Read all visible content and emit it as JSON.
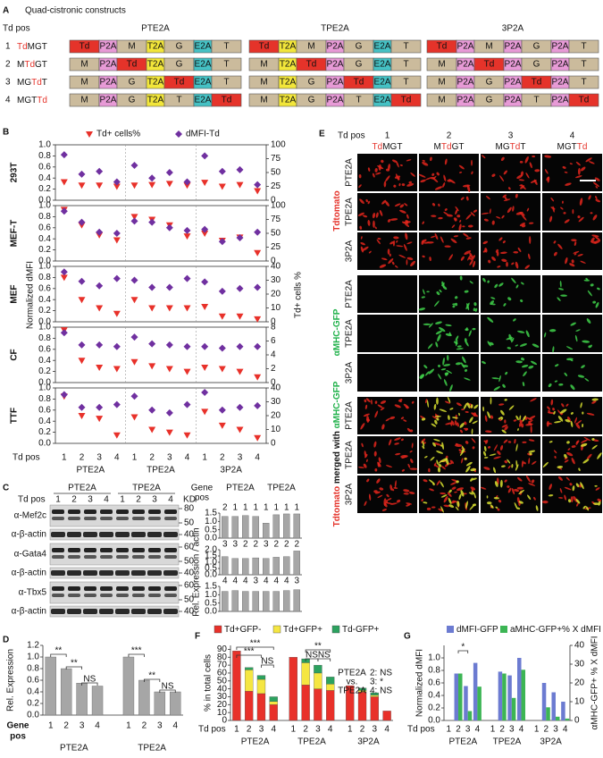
{
  "panel_labels": {
    "a": "A",
    "b": "B",
    "c": "C",
    "d": "D",
    "e": "E",
    "f": "F",
    "g": "G"
  },
  "panel_a": {
    "title": "Quad-cistronic constructs",
    "td_pos": "Td pos",
    "groups": [
      "PTE2A",
      "TPE2A",
      "3P2A"
    ],
    "rows": [
      {
        "number": "1",
        "label": [
          {
            "text": "Td",
            "color": "#e5332a"
          },
          {
            "text": "MGT"
          }
        ]
      },
      {
        "number": "2",
        "label": [
          {
            "text": "M"
          },
          {
            "text": "Td",
            "color": "#e5332a"
          },
          {
            "text": "GT"
          }
        ]
      },
      {
        "number": "3",
        "label": [
          {
            "text": "MG"
          },
          {
            "text": "Td",
            "color": "#e5332a"
          },
          {
            "text": "T"
          }
        ]
      },
      {
        "number": "4",
        "label": [
          {
            "text": "MGT"
          },
          {
            "text": "Td",
            "color": "#e5332a"
          }
        ]
      }
    ],
    "segment_colors": {
      "Td": "#e5332a",
      "P2A": "#e79ad6",
      "T2A": "#f2e63a",
      "E2A": "#45c1c4",
      "M": "#cbbb9c",
      "G": "#cbbb9c",
      "T": "#cbbb9c"
    },
    "constructs": [
      [
        [
          "Td",
          "P2A",
          "M",
          "T2A",
          "G",
          "E2A",
          "T"
        ],
        [
          "M",
          "P2A",
          "Td",
          "T2A",
          "G",
          "E2A",
          "T"
        ],
        [
          "M",
          "P2A",
          "G",
          "T2A",
          "Td",
          "E2A",
          "T"
        ],
        [
          "M",
          "P2A",
          "G",
          "T2A",
          "T",
          "E2A",
          "Td"
        ]
      ],
      [
        [
          "Td",
          "T2A",
          "M",
          "P2A",
          "G",
          "E2A",
          "T"
        ],
        [
          "M",
          "T2A",
          "Td",
          "P2A",
          "G",
          "E2A",
          "T"
        ],
        [
          "M",
          "T2A",
          "G",
          "P2A",
          "Td",
          "E2A",
          "T"
        ],
        [
          "M",
          "T2A",
          "G",
          "P2A",
          "T",
          "E2A",
          "Td"
        ]
      ],
      [
        [
          "Td",
          "P2A",
          "M",
          "P2A",
          "G",
          "P2A",
          "T"
        ],
        [
          "M",
          "P2A",
          "Td",
          "P2A",
          "G",
          "P2A",
          "T"
        ],
        [
          "M",
          "P2A",
          "G",
          "P2A",
          "Td",
          "P2A",
          "T"
        ],
        [
          "M",
          "P2A",
          "G",
          "P2A",
          "T",
          "P2A",
          "Td"
        ]
      ]
    ]
  },
  "panel_c_blot": {
    "td_pos": "Td pos",
    "groups": [
      "PTE2A",
      "TPE2A"
    ],
    "lanes": [
      "1",
      "2",
      "3",
      "4",
      "1",
      "2",
      "3",
      "4"
    ],
    "kd": "KD",
    "blots": [
      {
        "label": "α-Mef2c",
        "markers": [
          "80",
          "50"
        ]
      },
      {
        "label": "α-β-actin",
        "markers": [
          "40"
        ]
      },
      {
        "label": "α-Gata4",
        "markers": [
          "60",
          "50"
        ]
      },
      {
        "label": "α-β-actin",
        "markers": [
          "40"
        ]
      },
      {
        "label": "α-Tbx5",
        "markers": [
          "60",
          "50"
        ]
      },
      {
        "label": "α-β-actin",
        "markers": [
          "40"
        ]
      }
    ]
  },
  "panel_e": {
    "td_pos": "Td pos",
    "columns": [
      {
        "number": "1",
        "label": [
          {
            "text": "Td",
            "color": "#e5332a"
          },
          {
            "text": "MGT"
          }
        ]
      },
      {
        "number": "2",
        "label": [
          {
            "text": "M"
          },
          {
            "text": "Td",
            "color": "#e5332a"
          },
          {
            "text": "GT"
          }
        ]
      },
      {
        "number": "3",
        "label": [
          {
            "text": "MG"
          },
          {
            "text": "Td",
            "color": "#e5332a"
          },
          {
            "text": "T"
          }
        ]
      },
      {
        "number": "4",
        "label": [
          {
            "text": "MGT"
          },
          {
            "text": "Td",
            "color": "#e5332a"
          }
        ]
      }
    ],
    "blocks": [
      {
        "title": [
          {
            "text": "Tdtomato",
            "color": "#e5332a"
          }
        ],
        "rows": [
          "PTE2A",
          "TPE2A",
          "3P2A"
        ],
        "channels": [
          "#e0261c"
        ]
      },
      {
        "title": [
          {
            "text": "αMHC-GFP",
            "color": "#22b24c"
          }
        ],
        "rows": [
          "PTE2A",
          "TPE2A",
          "3P2A"
        ],
        "channels": [
          "#3fd04a"
        ]
      },
      {
        "title": [
          {
            "text": "Tdtomato",
            "color": "#e5332a"
          },
          {
            "text": " merged with "
          },
          {
            "text": "αMHC-GFP",
            "color": "#22b24c"
          }
        ],
        "rows": [
          "PTE2A",
          "TPE2A",
          "3P2A"
        ],
        "channels": [
          "#e0261c",
          "#d8e030"
        ]
      }
    ]
  },
  "chart_data": [
    {
      "type": "dot",
      "x_label": "Td pos",
      "categories": [
        "1",
        "2",
        "3",
        "4",
        "1",
        "2",
        "3",
        "4",
        "1",
        "2",
        "3",
        "4"
      ],
      "groups": [
        "PTE2A",
        "TPE2A",
        "3P2A"
      ],
      "legend": [
        {
          "name": "Td+ cells%",
          "color": "#e8312a"
        },
        {
          "name": "dMFI-Td",
          "color": "#7030a0"
        }
      ],
      "ylabel": "Normalized dMFI",
      "y2label": "Td+ cells %",
      "ylim": [
        0,
        1
      ],
      "yticks": [
        {
          "value": 0,
          "label": "0.0"
        },
        0.2,
        0.4,
        0.6,
        0.8,
        {
          "value": 1,
          "label": "1.0"
        }
      ],
      "panels": [
        {
          "name": "293T",
          "y2lim": [
            0,
            100
          ],
          "y2ticks": [
            0,
            25,
            50,
            75,
            100
          ],
          "series": [
            {
              "axis": "y2",
              "values": [
                33,
                27,
                27,
                25,
                27,
                28,
                30,
                27,
                32,
                25,
                28,
                17
              ]
            },
            {
              "axis": "y",
              "values": [
                0.82,
                0.47,
                0.52,
                0.33,
                0.63,
                0.4,
                0.5,
                0.33,
                0.8,
                0.52,
                0.55,
                0.28
              ]
            }
          ]
        },
        {
          "name": "MEF-T",
          "y2lim": [
            0,
            100
          ],
          "y2ticks": [
            0,
            25,
            50,
            75,
            100
          ],
          "series": [
            {
              "axis": "y2",
              "values": [
                93,
                65,
                47,
                38,
                80,
                75,
                65,
                45,
                50,
                37,
                43,
                15
              ]
            },
            {
              "axis": "y",
              "values": [
                0.9,
                0.7,
                0.52,
                0.5,
                0.72,
                0.7,
                0.6,
                0.55,
                0.57,
                0.35,
                0.42,
                0.52
              ]
            }
          ]
        },
        {
          "name": "MEF",
          "y2lim": [
            0,
            40
          ],
          "y2ticks": [
            0,
            10,
            20,
            30,
            40
          ],
          "series": [
            {
              "axis": "y2",
              "values": [
                32,
                16,
                10,
                6,
                16,
                10,
                10,
                10,
                11,
                4,
                4,
                2
              ]
            },
            {
              "axis": "y",
              "values": [
                0.9,
                0.73,
                0.65,
                0.78,
                0.75,
                0.62,
                0.62,
                0.78,
                0.72,
                0.55,
                0.6,
                0.62
              ]
            }
          ]
        },
        {
          "name": "CF",
          "y2lim": [
            0,
            8
          ],
          "y2ticks": [
            0,
            2,
            4,
            6,
            8
          ],
          "series": [
            {
              "axis": "y2",
              "values": [
                7.6,
                3.2,
                2.2,
                2,
                3,
                2.4,
                2,
                1.6,
                2.2,
                2,
                1.6,
                0.8
              ]
            },
            {
              "axis": "y",
              "values": [
                0.9,
                0.68,
                0.68,
                0.65,
                0.82,
                0.7,
                0.68,
                0.65,
                0.65,
                0.62,
                0.65,
                0.65
              ]
            }
          ]
        },
        {
          "name": "TTF",
          "y2lim": [
            0,
            40
          ],
          "y2ticks": [
            0,
            10,
            20,
            30,
            40
          ],
          "series": [
            {
              "axis": "y2",
              "values": [
                34,
                20,
                18,
                6,
                19,
                10,
                8,
                6,
                23,
                13,
                10,
                4
              ]
            },
            {
              "axis": "y",
              "values": [
                0.88,
                0.65,
                0.65,
                0.7,
                0.85,
                0.6,
                0.55,
                0.7,
                0.92,
                0.6,
                0.65,
                0.68
              ]
            }
          ]
        }
      ]
    },
    {
      "type": "bar",
      "category_label": [
        "Gene",
        "pos"
      ],
      "groups": [
        "PTE2A",
        "TPE2A"
      ],
      "categories": [
        "2",
        "1",
        "1",
        "1",
        "1",
        "1",
        "1",
        "1"
      ],
      "values": [
        1.3,
        1.3,
        1.35,
        1.3,
        0.9,
        1.4,
        1.45,
        1.45
      ],
      "color": "#a6a6a6",
      "ylim": [
        0,
        1.5
      ],
      "yticks": [
        {
          "value": 0,
          "label": "0.0"
        },
        0.5,
        {
          "value": 1,
          "label": "1.0"
        },
        1.5
      ]
    },
    {
      "type": "bar",
      "ylabel": "Rel. Expression / actin",
      "categories": [
        "3",
        "3",
        "2",
        "2",
        "3",
        "2",
        "2",
        "2"
      ],
      "values": [
        1.45,
        1.3,
        1.3,
        1.35,
        1.3,
        1.4,
        1.45,
        1.9
      ],
      "color": "#a6a6a6",
      "ylim": [
        0,
        2
      ],
      "yticks": [
        {
          "value": 0,
          "label": "0.0"
        },
        0.5,
        {
          "value": 1,
          "label": "1.0"
        },
        1.5,
        {
          "value": 2,
          "label": "2.0"
        }
      ]
    },
    {
      "type": "bar",
      "categories": [
        "4",
        "4",
        "4",
        "3",
        "4",
        "4",
        "4",
        "3"
      ],
      "values": [
        1.2,
        1.25,
        1.2,
        1.2,
        1.2,
        1.2,
        1.25,
        1.3
      ],
      "color": "#a6a6a6",
      "ylim": [
        0,
        1.5
      ],
      "yticks": [
        {
          "value": 0,
          "label": "0.0"
        },
        0.5,
        {
          "value": 1,
          "label": "1.0"
        },
        1.5
      ]
    },
    {
      "type": "bar",
      "ylabel": "Rel. Expression",
      "x_label": [
        "Gene",
        "pos"
      ],
      "groups": [
        "PTE2A",
        "TPE2A"
      ],
      "categories": [
        "1",
        "2",
        "3",
        "4",
        "1",
        "2",
        "3",
        "4"
      ],
      "values": [
        1.0,
        0.8,
        0.55,
        0.5,
        1.0,
        0.6,
        0.4,
        0.4
      ],
      "color": "#a6a6a6",
      "ylim": [
        0,
        1.2
      ],
      "yticks": [
        {
          "value": 0,
          "label": "0.0"
        },
        0.2,
        0.4,
        0.6,
        0.8,
        {
          "value": 1,
          "label": "1.0"
        },
        1.2
      ],
      "annotations": [
        "**",
        "**",
        "NS",
        "***",
        "**",
        "NS"
      ]
    },
    {
      "type": "stacked",
      "ylabel": "% in total cells",
      "x_label": "Td pos",
      "groups": [
        "PTE2A",
        "TPE2A",
        "3P2A"
      ],
      "categories": [
        "1",
        "2",
        "3",
        "4",
        "1",
        "2",
        "3",
        "4",
        "1",
        "2",
        "3",
        "4"
      ],
      "series": [
        {
          "name": "Td+GFP-",
          "color": "#e8312a",
          "values": [
            88,
            37,
            34,
            20,
            80,
            45,
            40,
            38,
            44,
            36,
            30,
            12
          ]
        },
        {
          "name": "Td+GFP+",
          "color": "#f5e642",
          "values": [
            0,
            27,
            18,
            4,
            0,
            28,
            20,
            8,
            0,
            2,
            2,
            0
          ]
        },
        {
          "name": "Td-GFP+",
          "color": "#2ca25f",
          "values": [
            0,
            3,
            5,
            6,
            0,
            5,
            10,
            9,
            0,
            3,
            3,
            0
          ]
        }
      ],
      "ylim": [
        0,
        95
      ],
      "yticks": [
        0,
        10,
        20,
        30,
        40,
        50,
        60,
        70,
        80,
        90
      ],
      "annotations": [
        "***",
        "***",
        "NS",
        "**",
        "NS",
        "NS"
      ],
      "note": [
        "PTE2A",
        "vs.",
        "TPE2A"
      ],
      "note_results": [
        "2: NS",
        "3: *",
        "4: NS"
      ]
    },
    {
      "type": "grouped",
      "ylabel": "Normalized dMFI",
      "y2label": "αMHC-GFP+ % X dMFI",
      "x_label": "Td pos",
      "groups": [
        "PTE2A",
        "TPE2A",
        "3P2A"
      ],
      "categories": [
        "1",
        "2",
        "3",
        "4",
        "1",
        "2",
        "3",
        "4",
        "1",
        "2",
        "3",
        "4"
      ],
      "series": [
        {
          "name": "dMFI-GFP",
          "color": "#6c7bd1",
          "axis": "y",
          "values": [
            0,
            0.75,
            0.55,
            0.92,
            0,
            0.78,
            0.72,
            1.0,
            0,
            0.6,
            0.45,
            0.3
          ]
        },
        {
          "name": "aMHC-GFP+% X dMFI",
          "color": "#3cb554",
          "axis": "y2",
          "values": [
            0,
            25,
            5,
            18,
            0,
            25,
            12,
            27,
            0,
            7,
            2,
            1
          ]
        }
      ],
      "ylim": [
        0,
        1.2
      ],
      "yticks": [
        {
          "value": 0,
          "label": "0.0"
        },
        0.2,
        0.4,
        0.6,
        0.8,
        {
          "value": 1,
          "label": "1.0"
        }
      ],
      "y2lim": [
        0,
        40
      ],
      "y2ticks": [
        0,
        10,
        20,
        30,
        40
      ],
      "annotations": [
        "*"
      ]
    }
  ]
}
